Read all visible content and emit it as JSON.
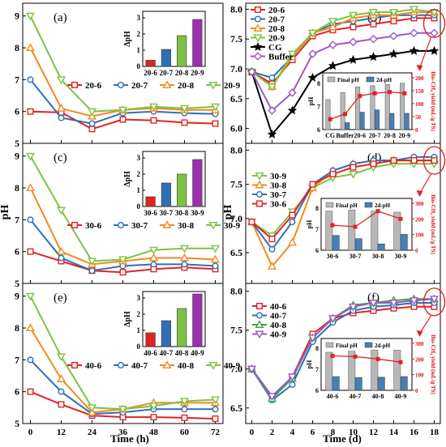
{
  "figure": {
    "left_column": {
      "xlabel": "Time (h)",
      "ylabel": "pH"
    },
    "right_column": {
      "xlabel": "Time (d)",
      "ylabel": "pH"
    }
  },
  "chart_data": [
    {
      "id": "a",
      "type": "line",
      "panel_label": "(a)",
      "x": [
        0,
        12,
        24,
        36,
        48,
        60,
        72
      ],
      "xlim": [
        -3,
        75
      ],
      "ylim": [
        5,
        9.4
      ],
      "yticks": [
        5,
        6,
        7,
        8,
        9
      ],
      "xticks": [],
      "legend": "middle",
      "series": [
        {
          "name": "20-6",
          "color": "#e32222",
          "marker": "square",
          "values": [
            6.0,
            5.97,
            5.45,
            5.75,
            5.72,
            5.65,
            5.62
          ]
        },
        {
          "name": "20-7",
          "color": "#2f6fb5",
          "marker": "circle",
          "values": [
            7.0,
            5.8,
            5.62,
            5.95,
            6.0,
            5.95,
            5.92
          ]
        },
        {
          "name": "20-8",
          "color": "#f08a1c",
          "marker": "triangle-up",
          "values": [
            8.0,
            6.1,
            5.85,
            6.05,
            6.1,
            6.05,
            6.05
          ]
        },
        {
          "name": "20-9",
          "color": "#7dc243",
          "marker": "triangle-down",
          "values": [
            9.0,
            7.0,
            6.0,
            6.05,
            6.15,
            6.1,
            6.15
          ]
        }
      ],
      "inset": {
        "type": "bar",
        "ylabel": "ΔpH",
        "ylim": [
          0,
          3.4
        ],
        "yticks": [
          0,
          1,
          2,
          3
        ],
        "categories": [
          "20-6",
          "20-7",
          "20-8",
          "20-9"
        ],
        "values": [
          0.38,
          1.05,
          1.9,
          2.9
        ],
        "colors": [
          "#e32222",
          "#2f6fb5",
          "#7dc243",
          "#9b2fae"
        ]
      }
    },
    {
      "id": "c",
      "type": "line",
      "panel_label": "(c)",
      "x": [
        0,
        12,
        24,
        36,
        48,
        60,
        72
      ],
      "xlim": [
        -3,
        75
      ],
      "ylim": [
        5,
        9.4
      ],
      "yticks": [
        5,
        6,
        7,
        8,
        9
      ],
      "xticks": [],
      "legend": "middle",
      "series": [
        {
          "name": "30-6",
          "color": "#e32222",
          "marker": "square",
          "values": [
            6.0,
            5.7,
            5.4,
            5.35,
            5.45,
            5.5,
            5.45
          ]
        },
        {
          "name": "30-7",
          "color": "#2f6fb5",
          "marker": "circle",
          "values": [
            7.0,
            5.8,
            5.4,
            5.55,
            5.6,
            5.6,
            5.55
          ]
        },
        {
          "name": "30-8",
          "color": "#f08a1c",
          "marker": "triangle-up",
          "values": [
            8.0,
            6.0,
            5.6,
            5.7,
            5.8,
            5.8,
            5.75
          ]
        },
        {
          "name": "30-9",
          "color": "#7dc243",
          "marker": "triangle-down",
          "values": [
            9.0,
            7.3,
            5.7,
            5.75,
            6.05,
            6.1,
            6.1
          ]
        }
      ],
      "inset": {
        "type": "bar",
        "ylabel": "ΔpH",
        "ylim": [
          0,
          3.4
        ],
        "yticks": [
          0,
          1,
          2,
          3
        ],
        "categories": [
          "30-6",
          "30-7",
          "30-8",
          "30-9"
        ],
        "values": [
          0.6,
          1.45,
          2.0,
          2.9
        ],
        "colors": [
          "#e32222",
          "#2f6fb5",
          "#7dc243",
          "#9b2fae"
        ]
      }
    },
    {
      "id": "e",
      "type": "line",
      "panel_label": "(e)",
      "x": [
        0,
        12,
        24,
        36,
        48,
        60,
        72
      ],
      "xlim": [
        -3,
        75
      ],
      "ylim": [
        5,
        9.4
      ],
      "yticks": [
        5,
        6,
        7,
        8,
        9
      ],
      "xticks": [
        0,
        12,
        24,
        36,
        48,
        60,
        72
      ],
      "legend": "middle",
      "series": [
        {
          "name": "40-6",
          "color": "#e32222",
          "marker": "square",
          "values": [
            6.0,
            5.6,
            5.25,
            5.2,
            5.2,
            5.18,
            5.15
          ]
        },
        {
          "name": "40-7",
          "color": "#2f6fb5",
          "marker": "circle",
          "values": [
            7.0,
            6.0,
            5.3,
            5.35,
            5.45,
            5.45,
            5.45
          ]
        },
        {
          "name": "40-8",
          "color": "#f08a1c",
          "marker": "triangle-up",
          "values": [
            8.0,
            6.4,
            5.35,
            5.45,
            5.65,
            5.65,
            5.65
          ]
        },
        {
          "name": "40-9",
          "color": "#7dc243",
          "marker": "triangle-down",
          "values": [
            9.0,
            7.1,
            5.5,
            5.45,
            5.55,
            5.7,
            5.75
          ]
        }
      ],
      "inset": {
        "type": "bar",
        "ylabel": "ΔpH",
        "ylim": [
          0,
          3.4
        ],
        "yticks": [
          0,
          1,
          2,
          3
        ],
        "categories": [
          "40-6",
          "40-7",
          "40-8",
          "40-9"
        ],
        "values": [
          0.85,
          1.6,
          2.35,
          3.25
        ],
        "colors": [
          "#e32222",
          "#2f6fb5",
          "#7dc243",
          "#9b2fae"
        ]
      }
    },
    {
      "id": "b",
      "type": "line",
      "panel_label": "(b)",
      "x": [
        0,
        2,
        4,
        6,
        8,
        10,
        12,
        14,
        16,
        18
      ],
      "xlim": [
        -0.6,
        18.6
      ],
      "ylim": [
        5.75,
        8.1
      ],
      "yticks": [
        6.0,
        6.5,
        7.0,
        7.5,
        8.0
      ],
      "xticks": [],
      "legend": "top-left",
      "series": [
        {
          "name": "20-6",
          "color": "#e32222",
          "marker": "square",
          "values": [
            6.95,
            6.75,
            7.15,
            7.55,
            7.65,
            7.7,
            7.75,
            7.8,
            7.85,
            7.85
          ]
        },
        {
          "name": "20-7",
          "color": "#2f6fb5",
          "marker": "circle",
          "values": [
            6.95,
            6.85,
            7.2,
            7.6,
            7.75,
            7.8,
            7.85,
            7.9,
            7.9,
            7.9
          ]
        },
        {
          "name": "20-8",
          "color": "#f08a1c",
          "marker": "triangle-up",
          "values": [
            6.95,
            6.7,
            7.2,
            7.6,
            7.7,
            7.85,
            7.9,
            7.9,
            7.95,
            7.95
          ]
        },
        {
          "name": "20-9",
          "color": "#7dc243",
          "marker": "triangle-down",
          "values": [
            6.95,
            6.7,
            7.25,
            7.6,
            7.8,
            7.9,
            7.95,
            7.95,
            8.0,
            7.95
          ]
        },
        {
          "name": "CG",
          "color": "#000000",
          "marker": "star",
          "values": [
            6.95,
            5.9,
            6.3,
            6.85,
            7.05,
            7.15,
            7.2,
            7.25,
            7.3,
            7.3
          ]
        },
        {
          "name": "Buffer",
          "color": "#9b59c5",
          "marker": "diamond",
          "values": [
            6.95,
            6.3,
            6.6,
            7.25,
            7.4,
            7.45,
            7.5,
            7.55,
            7.6,
            7.6
          ]
        }
      ],
      "inset": {
        "type": "bar+line",
        "categories": [
          "CG",
          "Buffer",
          "20-6",
          "20-7",
          "20-8",
          "20-9"
        ],
        "legend": [
          "Final pH",
          "2d-pH"
        ],
        "ylabel_left": "pH",
        "ylim_left": [
          6,
          8
        ],
        "yticks_left": [
          6,
          7,
          8
        ],
        "ylabel_right": "Bio-CH₄ yield (mL/g TS)",
        "ylim_right": [
          0,
          200
        ],
        "yticks_right": [
          0,
          50,
          100,
          150,
          200
        ],
        "final_ph": [
          7.3,
          7.6,
          7.85,
          7.9,
          7.95,
          8.0
        ],
        "ph_2d": [
          5.9,
          6.3,
          6.75,
          6.85,
          6.7,
          6.7
        ],
        "yield": [
          40,
          60,
          130,
          140,
          145,
          140
        ]
      }
    },
    {
      "id": "d",
      "type": "line",
      "panel_label": "(d)",
      "x": [
        0,
        2,
        4,
        6,
        8,
        10,
        12,
        14,
        16,
        18
      ],
      "xlim": [
        -0.6,
        18.6
      ],
      "ylim": [
        6.05,
        8.1
      ],
      "yticks": [
        6.5,
        7.0,
        7.5,
        8.0
      ],
      "xticks": [],
      "legend": "top-left",
      "series": [
        {
          "name": "30-9",
          "color": "#7dc243",
          "marker": "triangle-down",
          "values": [
            6.95,
            6.75,
            7.1,
            7.45,
            7.6,
            7.65,
            7.75,
            7.8,
            7.8,
            7.8
          ]
        },
        {
          "name": "30-8",
          "color": "#f08a1c",
          "marker": "triangle-up",
          "values": [
            6.95,
            6.3,
            6.65,
            7.45,
            7.7,
            7.8,
            7.85,
            7.85,
            7.85,
            7.85
          ]
        },
        {
          "name": "30-7",
          "color": "#2f6fb5",
          "marker": "circle",
          "values": [
            6.95,
            6.55,
            6.95,
            7.5,
            7.7,
            7.8,
            7.85,
            7.85,
            7.9,
            7.9
          ]
        },
        {
          "name": "30-6",
          "color": "#e32222",
          "marker": "square",
          "values": [
            6.95,
            6.7,
            7.05,
            7.5,
            7.65,
            7.75,
            7.8,
            7.85,
            7.85,
            7.85
          ]
        }
      ],
      "inset": {
        "type": "bar+line",
        "categories": [
          "30-6",
          "30-7",
          "30-8",
          "30-9"
        ],
        "legend": [
          "Final pH",
          "2d-pH"
        ],
        "ylabel_left": "pH",
        "ylim_left": [
          6,
          8
        ],
        "yticks_left": [
          6,
          7,
          8
        ],
        "ylabel_right": "Bio-CH₄ yield (mL/g TS)",
        "ylim_right": [
          0,
          300
        ],
        "yticks_right": [
          0,
          100,
          200,
          300
        ],
        "final_ph": [
          7.85,
          7.9,
          7.85,
          7.8
        ],
        "ph_2d": [
          6.7,
          6.55,
          6.3,
          6.75
        ],
        "yield": [
          160,
          150,
          250,
          200
        ]
      }
    },
    {
      "id": "f",
      "type": "line",
      "panel_label": "(f)",
      "x": [
        0,
        2,
        4,
        6,
        8,
        10,
        12,
        14,
        16,
        18
      ],
      "xlim": [
        -0.6,
        18.6
      ],
      "ylim": [
        6.3,
        8.1
      ],
      "yticks": [
        6.5,
        7.0,
        7.5,
        8.0
      ],
      "xticks": [
        0,
        2,
        4,
        6,
        8,
        10,
        12,
        14,
        16,
        18
      ],
      "legend": "top-left",
      "series": [
        {
          "name": "40-6",
          "color": "#e32222",
          "marker": "square",
          "values": [
            7.0,
            6.65,
            6.9,
            7.45,
            7.65,
            7.72,
            7.75,
            7.78,
            7.8,
            7.8
          ]
        },
        {
          "name": "40-7",
          "color": "#2f6fb5",
          "marker": "circle",
          "values": [
            7.0,
            6.6,
            6.8,
            7.35,
            7.6,
            7.75,
            7.8,
            7.82,
            7.85,
            7.85
          ]
        },
        {
          "name": "40-8",
          "color": "#3aa245",
          "marker": "triangle-up",
          "values": [
            7.0,
            6.62,
            6.88,
            7.4,
            7.65,
            7.82,
            7.85,
            7.88,
            7.9,
            7.9
          ]
        },
        {
          "name": "40-9",
          "color": "#9b59c5",
          "marker": "triangle-down",
          "values": [
            7.0,
            6.65,
            6.9,
            7.4,
            7.65,
            7.8,
            7.85,
            7.85,
            7.88,
            7.9
          ]
        }
      ],
      "inset": {
        "type": "bar+line",
        "categories": [
          "40-6",
          "40-7",
          "40-8",
          "40-9"
        ],
        "legend": [
          "Final pH",
          "2d-pH"
        ],
        "ylabel_left": "pH",
        "ylim_left": [
          6,
          8
        ],
        "yticks_left": [
          6,
          7,
          8
        ],
        "ylabel_right": "Bio-CH₄ yield (mL/g TS)",
        "ylim_right": [
          0,
          300
        ],
        "yticks_right": [
          0,
          100,
          200,
          300
        ],
        "final_ph": [
          7.8,
          7.85,
          7.9,
          7.9
        ],
        "ph_2d": [
          6.65,
          6.6,
          6.62,
          6.65
        ],
        "yield": [
          220,
          215,
          200,
          180
        ]
      }
    }
  ]
}
